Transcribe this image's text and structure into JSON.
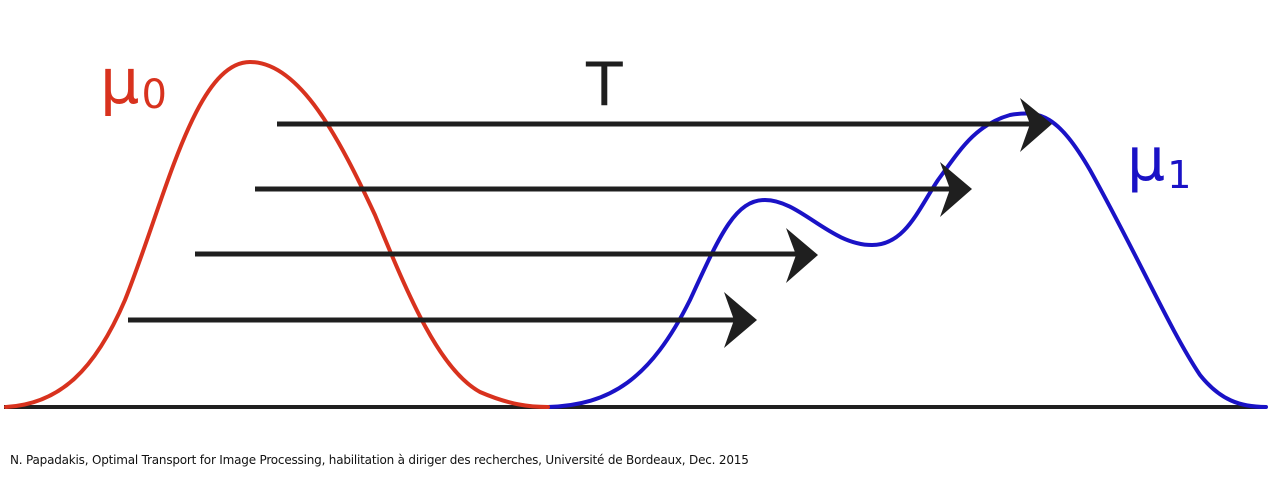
{
  "labels": {
    "source": "μ",
    "source_sub": "0",
    "map": "T",
    "target": "μ",
    "target_sub": "1"
  },
  "caption": "N. Papadakis, Optimal Transport for Image Processing, habilitation à diriger des recherches, Université de Bordeaux, Dec. 2015",
  "colors": {
    "source_curve": "#d8321e",
    "target_curve": "#1a12c6",
    "arrows": "#1f1f1f",
    "baseline": "#1f1f1f"
  }
}
